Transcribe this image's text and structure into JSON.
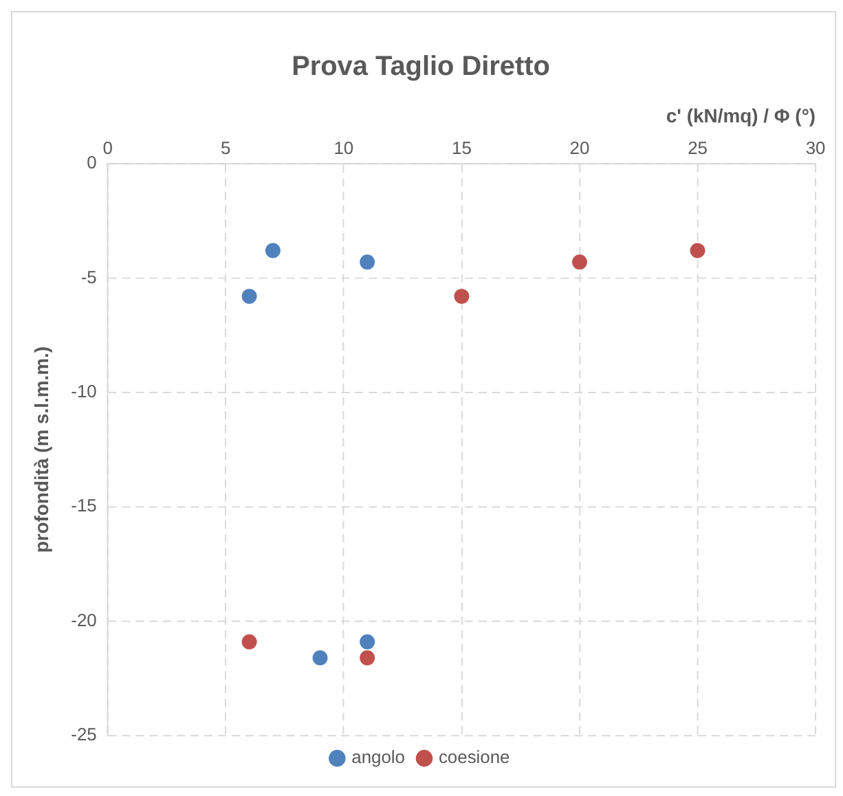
{
  "chart_data": {
    "type": "scatter",
    "title": "Prova Taglio Diretto",
    "xlabel": "c' (kN/mq) / Φ (°)",
    "ylabel": "profondità (m s.l.m.m.)",
    "xlim": [
      0,
      30
    ],
    "xticks": [
      0,
      5,
      10,
      15,
      20,
      25,
      30
    ],
    "ylim": [
      -25,
      0
    ],
    "yticks": [
      -25,
      -20,
      -15,
      -10,
      -5,
      0
    ],
    "grid": true,
    "legend": "bottom",
    "marker": "circle",
    "series": [
      {
        "name": "angolo",
        "color": "#4f81bd",
        "x": [
          7,
          6,
          11,
          9,
          11
        ],
        "values": [
          -3.8,
          -5.8,
          -4.3,
          -21.6,
          -20.9
        ]
      },
      {
        "name": "coesione",
        "color": "#c0504d",
        "x": [
          20,
          25,
          15,
          6,
          11
        ],
        "values": [
          -4.3,
          -3.8,
          -5.8,
          -20.9,
          -21.6
        ]
      }
    ]
  }
}
